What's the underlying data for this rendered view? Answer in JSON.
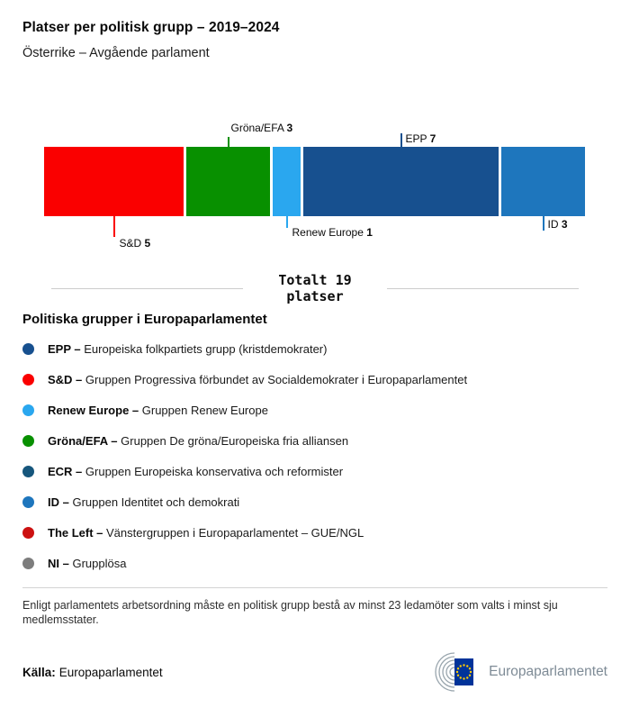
{
  "header": {
    "title": "Platser per politisk grupp – 2019–2024",
    "subtitle": "Österrike – Avgående parlament"
  },
  "chart_data": {
    "type": "bar",
    "title": "Platser per politisk grupp – 2019–2024",
    "subtitle": "Österrike – Avgående parlament",
    "total_seats": 19,
    "total_label_line1": "Totalt 19",
    "total_label_line2": "platser",
    "categories": [
      "S&D",
      "Gröna/EFA",
      "Renew Europe",
      "EPP",
      "ID"
    ],
    "values": [
      5,
      3,
      1,
      7,
      3
    ],
    "segments": [
      {
        "name": "S&D",
        "seats": 5,
        "color": "#fa0000",
        "label_side": "below"
      },
      {
        "name": "Gröna/EFA",
        "seats": 3,
        "color": "#089000",
        "label_side": "above"
      },
      {
        "name": "Renew Europe",
        "seats": 1,
        "color": "#2aa7ef",
        "label_side": "below"
      },
      {
        "name": "EPP",
        "seats": 7,
        "color": "#17508f",
        "label_side": "above"
      },
      {
        "name": "ID",
        "seats": 3,
        "color": "#1e76bd",
        "label_side": "below"
      }
    ]
  },
  "legend": {
    "heading": "Politiska grupper i Europaparlamentet",
    "items": [
      {
        "name": "EPP –",
        "description": "Europeiska folkpartiets grupp (kristdemokrater)",
        "color": "#17508f"
      },
      {
        "name": "S&D –",
        "description": "Gruppen Progressiva förbundet av Socialdemokrater i Europaparlamentet",
        "color": "#fa0000"
      },
      {
        "name": "Renew Europe –",
        "description": "Gruppen Renew Europe",
        "color": "#2aa7ef"
      },
      {
        "name": "Gröna/EFA –",
        "description": "Gruppen De gröna/Europeiska fria alliansen",
        "color": "#089000"
      },
      {
        "name": "ECR –",
        "description": "Gruppen Europeiska konservativa och reformister",
        "color": "#16567c"
      },
      {
        "name": "ID –",
        "description": "Gruppen Identitet och demokrati",
        "color": "#1e76bd"
      },
      {
        "name": "The Left –",
        "description": "Vänstergruppen i Europaparlamentet – GUE/NGL",
        "color": "#cc1111"
      },
      {
        "name": "NI –",
        "description": "Grupplösa",
        "color": "#7d7d7d"
      }
    ]
  },
  "footnote": "Enligt parlamentets arbetsordning måste en politisk grupp bestå av minst 23 ledamöter som valts i minst sju medlemsstater.",
  "footer": {
    "source_label": "Källa:",
    "source_value": "Europaparlamentet",
    "logo_text": "Europaparlamentet"
  }
}
